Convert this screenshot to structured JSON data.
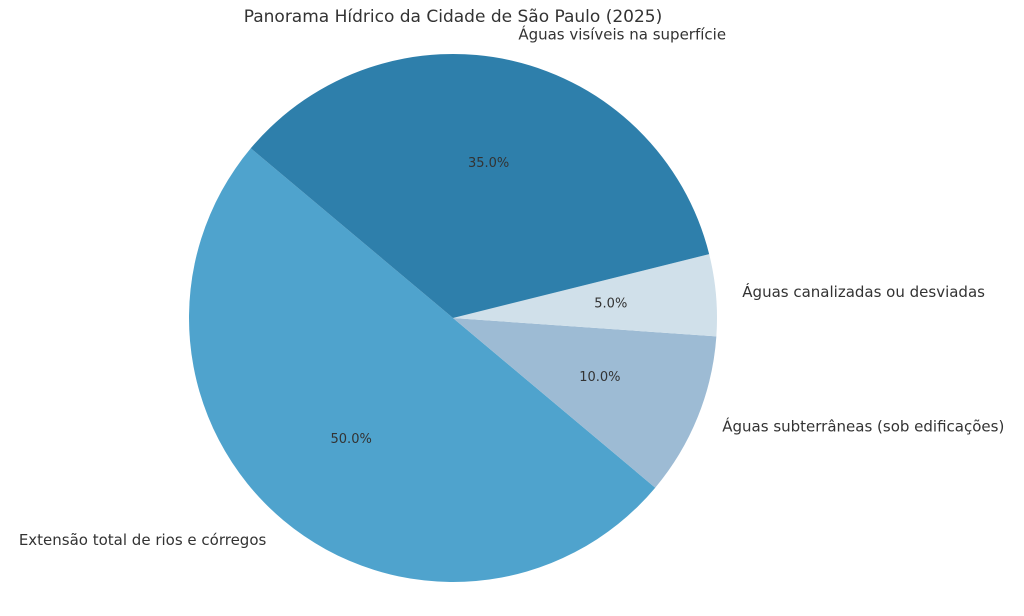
{
  "chart_data": {
    "type": "pie",
    "title": "Panorama Hídrico da Cidade de São Paulo (2025)",
    "categories": [
      "Extensão total de rios e córregos",
      "Águas subterrâneas (sob edificações)",
      "Águas canalizadas ou desviadas",
      "Águas visíveis na superfície"
    ],
    "values": [
      50,
      10,
      5,
      35
    ],
    "value_labels": [
      "50.0%",
      "10.0%",
      "5.0%",
      "35.0%"
    ],
    "colors": [
      "#4fa3cd",
      "#9dbbd4",
      "#d0e0ea",
      "#2e7fab"
    ],
    "start_angle": 140
  }
}
